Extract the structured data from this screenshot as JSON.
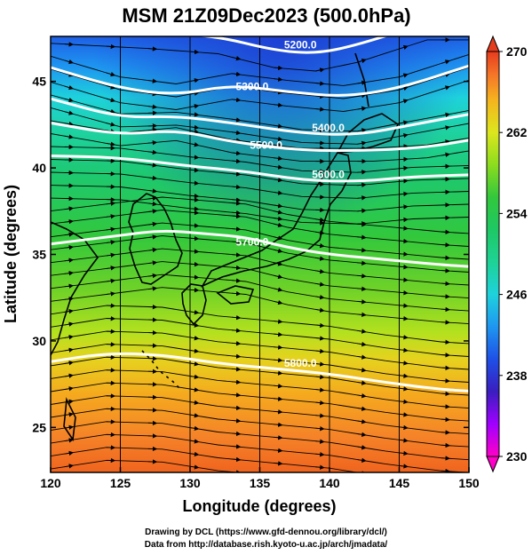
{
  "title": "MSM 21Z09Dec2023 (500.0hPa)",
  "axes": {
    "xlabel": "Longitude (degrees)",
    "ylabel": "Latitude  (degrees)",
    "xlim": [
      120,
      150
    ],
    "ylim": [
      22.4,
      47.6
    ],
    "xticks": [
      120,
      125,
      130,
      135,
      140,
      145,
      150
    ],
    "yticks": [
      25,
      30,
      35,
      40,
      45
    ]
  },
  "colorbar": {
    "min": 230,
    "max": 270,
    "ticks": [
      230,
      238,
      246,
      254,
      262,
      270
    ],
    "extend": "both",
    "colors": [
      "#ff00c8",
      "#a000ff",
      "#3a1ebf",
      "#1e50e6",
      "#1e96f0",
      "#1ed2dc",
      "#1ed296",
      "#1ec864",
      "#32c83c",
      "#8cdc1e",
      "#dce61e",
      "#f5b41e",
      "#f57828",
      "#e63c1e"
    ]
  },
  "chart_data": {
    "type": "contour+streamline",
    "variable": "500hPa geopotential height contours over temperature",
    "contours": [
      {
        "label": "5200.0",
        "lat_profile": [
          [
            120,
            48.2
          ],
          [
            127,
            47.9
          ],
          [
            132,
            47.6
          ],
          [
            136,
            46.8
          ],
          [
            139,
            46.6
          ],
          [
            142,
            47.1
          ],
          [
            147,
            48.4
          ]
        ]
      },
      {
        "label": "5300.0",
        "lat_profile": [
          [
            120,
            45.8
          ],
          [
            125,
            44.6
          ],
          [
            129,
            44.2
          ],
          [
            133,
            44.8
          ],
          [
            137,
            44.4
          ],
          [
            141,
            44.1
          ],
          [
            145,
            44.6
          ],
          [
            150,
            45.9
          ]
        ]
      },
      {
        "label": "5400.0",
        "lat_profile": [
          [
            120,
            44.0
          ],
          [
            125,
            42.9
          ],
          [
            129,
            43.0
          ],
          [
            133,
            42.6
          ],
          [
            138,
            42.0
          ],
          [
            142,
            41.9
          ],
          [
            146,
            42.5
          ],
          [
            150,
            43.1
          ]
        ]
      },
      {
        "label": "5500.0",
        "lat_profile": [
          [
            120,
            42.6
          ],
          [
            125,
            41.9
          ],
          [
            129,
            42.2
          ],
          [
            133,
            41.5
          ],
          [
            138,
            41.0
          ],
          [
            143,
            41.0
          ],
          [
            147,
            41.2
          ],
          [
            150,
            41.6
          ]
        ]
      },
      {
        "label": "5600.0",
        "lat_profile": [
          [
            120,
            40.7
          ],
          [
            125,
            40.6
          ],
          [
            130,
            40.1
          ],
          [
            134,
            39.8
          ],
          [
            138,
            39.3
          ],
          [
            142,
            39.2
          ],
          [
            146,
            39.5
          ],
          [
            150,
            39.6
          ]
        ]
      },
      {
        "label": "5700.0",
        "lat_profile": [
          [
            120,
            35.6
          ],
          [
            125,
            36.1
          ],
          [
            128,
            36.4
          ],
          [
            131,
            36.2
          ],
          [
            134,
            36.0
          ],
          [
            137,
            35.4
          ],
          [
            140,
            35.0
          ],
          [
            144,
            34.7
          ],
          [
            148,
            34.4
          ],
          [
            150,
            34.3
          ]
        ]
      },
      {
        "label": "5800.0",
        "lat_profile": [
          [
            120,
            28.8
          ],
          [
            124,
            29.3
          ],
          [
            128,
            29.2
          ],
          [
            132,
            28.7
          ],
          [
            136,
            28.4
          ],
          [
            140,
            28.1
          ],
          [
            144,
            27.6
          ],
          [
            148,
            27.2
          ],
          [
            150,
            27.1
          ]
        ]
      }
    ],
    "temperature_field_note": "",
    "wind_direction": "westerly"
  },
  "footer": {
    "line1": "Drawing by DCL (https://www.gfd-dennou.org/library/dcl/)",
    "line2": "Data from http://database.rish.kyoto-u.ac.jp/arch/jmadata/"
  }
}
